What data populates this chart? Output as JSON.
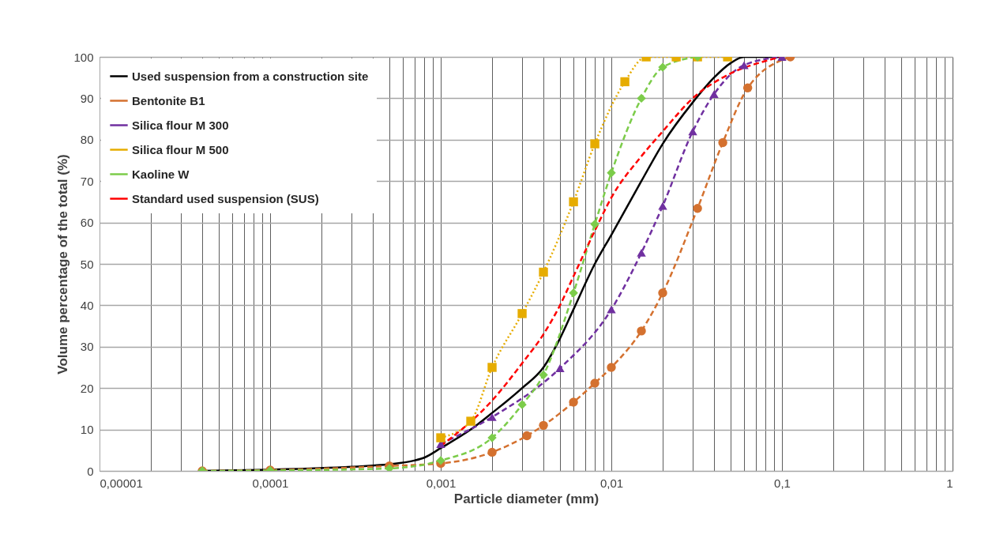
{
  "chart_data": {
    "type": "line",
    "xlabel": "Particle diameter (mm)",
    "ylabel": "Volume percentage of the total (%)",
    "log": "x",
    "grid": true,
    "legend": "top left",
    "xlim": [
      1e-05,
      1
    ],
    "ylim": [
      0,
      100
    ],
    "xticks": [
      {
        "value": 1e-05,
        "label": "0,00001"
      },
      {
        "value": 2e-05,
        "label": null
      },
      {
        "value": 3e-05,
        "label": null
      },
      {
        "value": 4e-05,
        "label": null
      },
      {
        "value": 5e-05,
        "label": null
      },
      {
        "value": 6e-05,
        "label": null
      },
      {
        "value": 7e-05,
        "label": null
      },
      {
        "value": 8e-05,
        "label": null
      },
      {
        "value": 9e-05,
        "label": null
      },
      {
        "value": 0.0001,
        "label": "0,0001"
      },
      {
        "value": 0.0002,
        "label": null
      },
      {
        "value": 0.0003,
        "label": null
      },
      {
        "value": 0.0004,
        "label": null
      },
      {
        "value": 0.0005,
        "label": null
      },
      {
        "value": 0.0006,
        "label": null
      },
      {
        "value": 0.0007,
        "label": null
      },
      {
        "value": 0.0008,
        "label": null
      },
      {
        "value": 0.0009,
        "label": null
      },
      {
        "value": 0.001,
        "label": "0,001"
      },
      {
        "value": 0.002,
        "label": null
      },
      {
        "value": 0.003,
        "label": null
      },
      {
        "value": 0.004,
        "label": null
      },
      {
        "value": 0.005,
        "label": null
      },
      {
        "value": 0.006,
        "label": null
      },
      {
        "value": 0.007,
        "label": null
      },
      {
        "value": 0.008,
        "label": null
      },
      {
        "value": 0.009,
        "label": null
      },
      {
        "value": 0.01,
        "label": "0,01"
      },
      {
        "value": 0.02,
        "label": null
      },
      {
        "value": 0.03,
        "label": null
      },
      {
        "value": 0.04,
        "label": null
      },
      {
        "value": 0.05,
        "label": null
      },
      {
        "value": 0.06,
        "label": null
      },
      {
        "value": 0.07,
        "label": null
      },
      {
        "value": 0.08,
        "label": null
      },
      {
        "value": 0.09,
        "label": null
      },
      {
        "value": 0.1,
        "label": "0,1"
      },
      {
        "value": 0.2,
        "label": null
      },
      {
        "value": 0.3,
        "label": null
      },
      {
        "value": 0.4,
        "label": null
      },
      {
        "value": 0.5,
        "label": null
      },
      {
        "value": 0.6,
        "label": null
      },
      {
        "value": 0.7,
        "label": null
      },
      {
        "value": 0.8,
        "label": null
      },
      {
        "value": 0.9,
        "label": null
      },
      {
        "value": 1,
        "label": "1"
      }
    ],
    "yticks": [
      0,
      10,
      20,
      30,
      40,
      50,
      60,
      70,
      80,
      90,
      100
    ],
    "series": [
      {
        "name": "Used suspension from a construction site",
        "color": "#000000",
        "marker": "none",
        "line_style": "solid",
        "x": [
          4e-05,
          0.0001,
          0.0003,
          0.0005,
          0.0007,
          0.0008,
          0.001,
          0.0015,
          0.002,
          0.003,
          0.004,
          0.005,
          0.006,
          0.008,
          0.01,
          0.015,
          0.02,
          0.03,
          0.04,
          0.05,
          0.06,
          0.1
        ],
        "values": [
          0,
          0.3,
          1,
          1.6,
          2.5,
          3.2,
          5.5,
          10,
          14,
          20,
          25,
          32,
          39,
          50,
          57,
          70,
          79,
          89,
          95,
          98.5,
          100,
          100
        ]
      },
      {
        "name": "Bentonite B1",
        "color": "#d4712f",
        "marker": "circle",
        "line_style": "dashed",
        "x": [
          4e-05,
          0.0001,
          0.0005,
          0.001,
          0.002,
          0.0032,
          0.004,
          0.006,
          0.008,
          0.01,
          0.015,
          0.02,
          0.032,
          0.045,
          0.063,
          0.112
        ],
        "values": [
          0,
          0.2,
          1.2,
          1.8,
          4.5,
          8.5,
          11,
          16.6,
          21.2,
          25,
          33.8,
          43,
          63.4,
          79.3,
          92.5,
          100
        ]
      },
      {
        "name": "Silica flour M 300",
        "color": "#7030a0",
        "marker": "triangle",
        "line_style": "dashed",
        "x": [
          0.001,
          0.002,
          0.005,
          0.01,
          0.015,
          0.02,
          0.03,
          0.04,
          0.06,
          0.1
        ],
        "values": [
          6.5,
          13,
          24.8,
          39,
          52.7,
          64,
          82,
          91,
          98,
          100
        ]
      },
      {
        "name": "Silica flour M 500",
        "color": "#e6ac00",
        "marker": "square",
        "line_style": "dotted",
        "x": [
          0.001,
          0.0015,
          0.002,
          0.003,
          0.004,
          0.006,
          0.008,
          0.012,
          0.016,
          0.024,
          0.032,
          0.048
        ],
        "values": [
          8,
          12,
          25,
          38,
          48,
          65,
          79,
          94,
          100,
          100,
          100,
          100
        ]
      },
      {
        "name": "Kaoline W",
        "color": "#7ccc4a",
        "marker": "diamond",
        "line_style": "dashed",
        "x": [
          4e-05,
          0.0001,
          0.0005,
          0.001,
          0.002,
          0.003,
          0.004,
          0.006,
          0.008,
          0.01,
          0.015,
          0.02,
          0.032
        ],
        "values": [
          0,
          0.1,
          0.6,
          2.5,
          8,
          16,
          23.2,
          43,
          59.6,
          72,
          90,
          97.5,
          100
        ]
      },
      {
        "name": "Standard used suspension (SUS)",
        "color": "#ff0000",
        "marker": "none",
        "line_style": "dashed",
        "x": [
          0.001,
          0.002,
          0.003,
          0.004,
          0.005,
          0.006,
          0.008,
          0.01,
          0.015,
          0.02,
          0.03,
          0.05,
          0.08,
          0.1
        ],
        "values": [
          6,
          17,
          26,
          33,
          40,
          47,
          58,
          66,
          76,
          82,
          90,
          96,
          99,
          100
        ]
      }
    ]
  }
}
